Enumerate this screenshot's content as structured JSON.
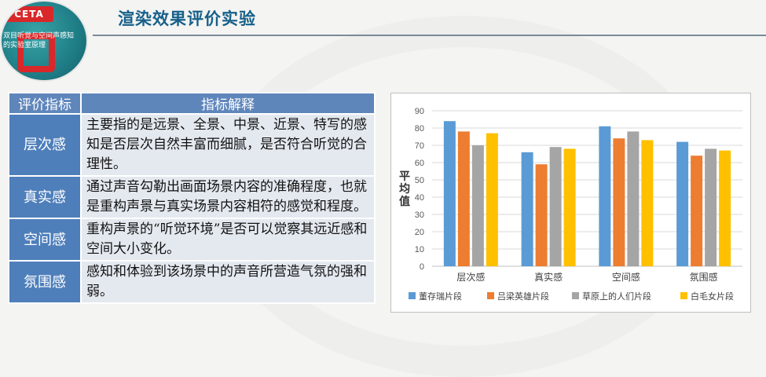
{
  "logo": {
    "mark": "CETA",
    "line1": "双目听觉与空间声感知",
    "line2": "的实验室原理"
  },
  "slide_title": "渲染效果评价实验",
  "table": {
    "headers": [
      "评价指标",
      "指标解释"
    ],
    "rows": [
      {
        "name": "层次感",
        "desc": "主要指的是远景、全景、中景、近景、特写的感知是否层次自然丰富而细腻，是否符合听觉的合理性。"
      },
      {
        "name": "真实感",
        "desc": "通过声音勾勒出画面场景内容的准确程度，也就是重构声景与真实场景内容相符的感觉和程度。"
      },
      {
        "name": "空间感",
        "desc": "重构声景的“听觉环境”是否可以觉察其远近感和空间大小变化。"
      },
      {
        "name": "氛围感",
        "desc": "感知和体验到该场景中的声音所营造气氛的强和弱。"
      }
    ]
  },
  "chart_data": {
    "type": "bar",
    "categories": [
      "层次感",
      "真实感",
      "空间感",
      "氛围感"
    ],
    "series": [
      {
        "name": "董存瑞片段",
        "color": "#5b9bd5",
        "values": [
          84,
          66,
          81,
          72
        ]
      },
      {
        "name": "吕梁英雄片段",
        "color": "#ed7d31",
        "values": [
          78,
          59,
          74,
          64
        ]
      },
      {
        "name": "草原上的人们片段",
        "color": "#a5a5a5",
        "values": [
          70,
          69,
          78,
          68
        ]
      },
      {
        "name": "白毛女片段",
        "color": "#ffc000",
        "values": [
          77,
          68,
          73,
          67
        ]
      }
    ],
    "ylabel": "平均值",
    "ylim": [
      0,
      90
    ],
    "yticks": [
      "0",
      "10",
      "20",
      "30",
      "40",
      "50",
      "60",
      "70",
      "80",
      "90"
    ],
    "grid": true,
    "legend": "bottom"
  }
}
